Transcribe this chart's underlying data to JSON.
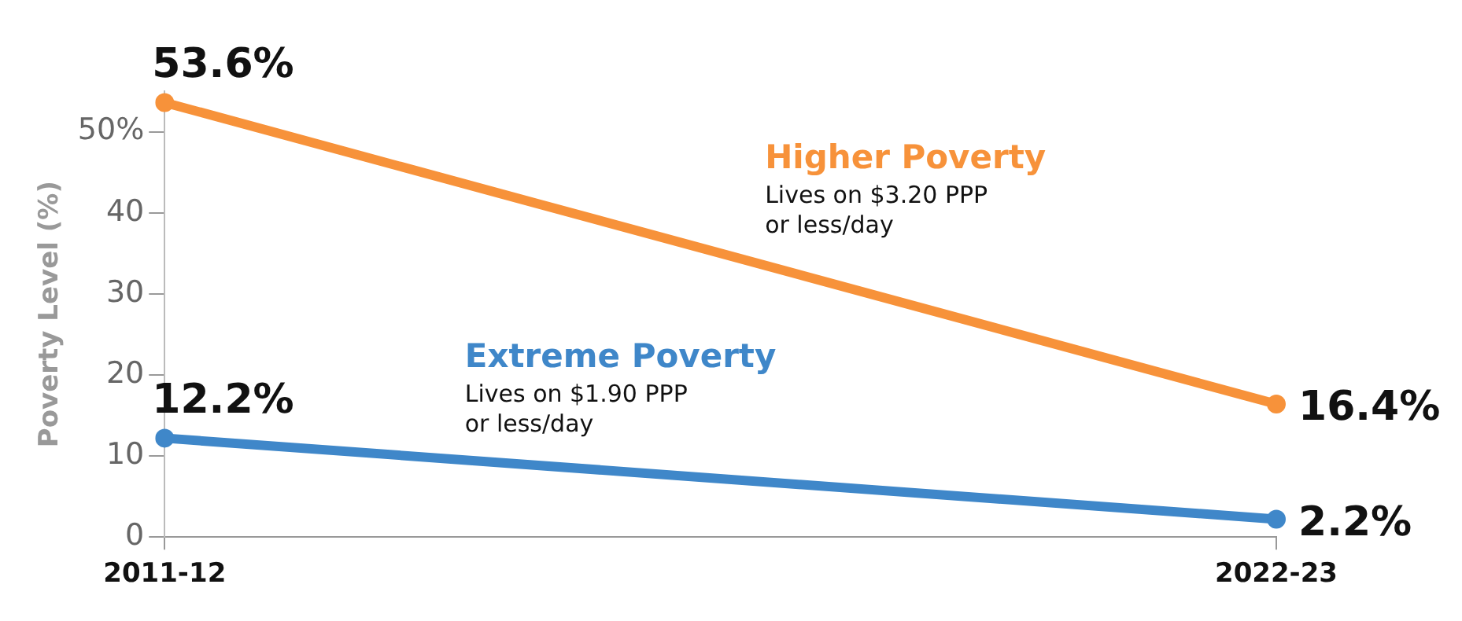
{
  "chart_data": {
    "type": "line",
    "ylabel": "Poverty Level (%)",
    "categories": [
      "2011-12",
      "2022-23"
    ],
    "series": [
      {
        "name": "Higher Poverty",
        "color": "#f7923a",
        "values": [
          53.6,
          16.4
        ],
        "value_labels": [
          "53.6%",
          "16.4%"
        ]
      },
      {
        "name": "Extreme Poverty",
        "color": "#3f87c9",
        "values": [
          12.2,
          2.2
        ],
        "value_labels": [
          "12.2%",
          "2.2%"
        ]
      }
    ],
    "annotations": [
      "Lives on $3.20 PPP or less/day",
      "Lives on $1.90 PPP or less/day"
    ],
    "ylim": [
      0,
      55
    ],
    "yticks": [
      0,
      10,
      20,
      30,
      40,
      {
        "value": 50,
        "label": "50%"
      }
    ],
    "grid": false,
    "legend": false,
    "marker": "circle",
    "line_style": "solid"
  }
}
